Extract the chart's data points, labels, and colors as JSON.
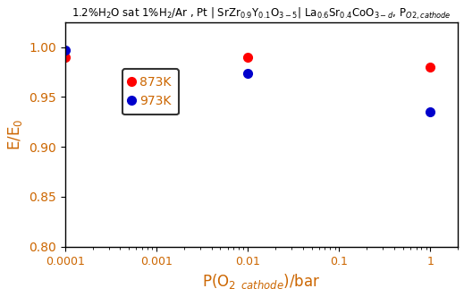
{
  "title_text": "1.2%H$_2$O sat 1%H$_2$/Ar , Pt | SrZr$_{0.9}$Y$_{0.1}$O$_{3-5}$| La$_{0.6}$Sr$_{0.4}$CoO$_{3-d}$, P$_{O2, cathode}$",
  "x_label": "P(O$_{2}$ $_{cathode}$)/bar",
  "y_label": "E/E$_0$",
  "xlim": [
    0.0001,
    2
  ],
  "ylim": [
    0.8,
    1.025
  ],
  "yticks": [
    0.8,
    0.85,
    0.9,
    0.95,
    1.0
  ],
  "xtick_labels": [
    "0.0001",
    "0.001",
    "0.01",
    "0.1",
    "1"
  ],
  "xtick_vals": [
    0.0001,
    0.001,
    0.01,
    0.1,
    1
  ],
  "series": [
    {
      "label": "873K",
      "color": "#ff0000",
      "x": [
        0.0001,
        0.01,
        1
      ],
      "y": [
        0.99,
        0.99,
        0.98
      ]
    },
    {
      "label": "973K",
      "color": "#0000cc",
      "x": [
        0.0001,
        0.01,
        1
      ],
      "y": [
        0.997,
        0.974,
        0.935
      ]
    }
  ],
  "marker_size": 7,
  "title_color": "#000000",
  "axis_label_color": "#cc6600",
  "tick_label_color": "#cc6600",
  "background_color": "#ffffff"
}
